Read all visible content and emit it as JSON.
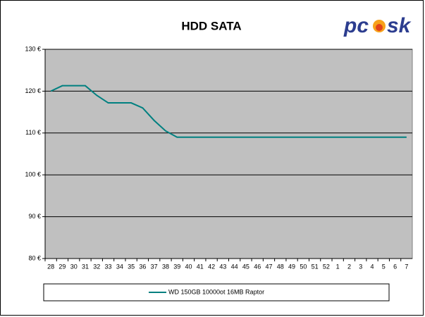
{
  "logo": {
    "left": "pc",
    "right": "sk"
  },
  "chart_data": {
    "type": "line",
    "title": "HDD SATA",
    "categories": [
      "28",
      "29",
      "30",
      "31",
      "32",
      "33",
      "34",
      "35",
      "36",
      "37",
      "38",
      "39",
      "40",
      "41",
      "42",
      "43",
      "44",
      "45",
      "46",
      "47",
      "48",
      "49",
      "50",
      "51",
      "52",
      "1",
      "2",
      "3",
      "4",
      "5",
      "6",
      "7"
    ],
    "series": [
      {
        "name": "WD 150GB 10000ot 16MB Raptor",
        "color": "#008080",
        "values": [
          120,
          121.3,
          121.3,
          121.3,
          119,
          117.2,
          117.2,
          117.2,
          116,
          113,
          110.5,
          109,
          109,
          109,
          109,
          109,
          109,
          109,
          109,
          109,
          109,
          109,
          109,
          109,
          109,
          109,
          109,
          109,
          109,
          109,
          109,
          109
        ]
      }
    ],
    "ylim": [
      80,
      130
    ],
    "yticks": [
      {
        "value": 80,
        "label": "80 €"
      },
      {
        "value": 90,
        "label": "90 €"
      },
      {
        "value": 100,
        "label": "100 €"
      },
      {
        "value": 110,
        "label": "110 €"
      },
      {
        "value": 120,
        "label": "120 €"
      },
      {
        "value": 130,
        "label": "130 €"
      }
    ],
    "grid": true,
    "plot_background": "#c0c0c0"
  }
}
